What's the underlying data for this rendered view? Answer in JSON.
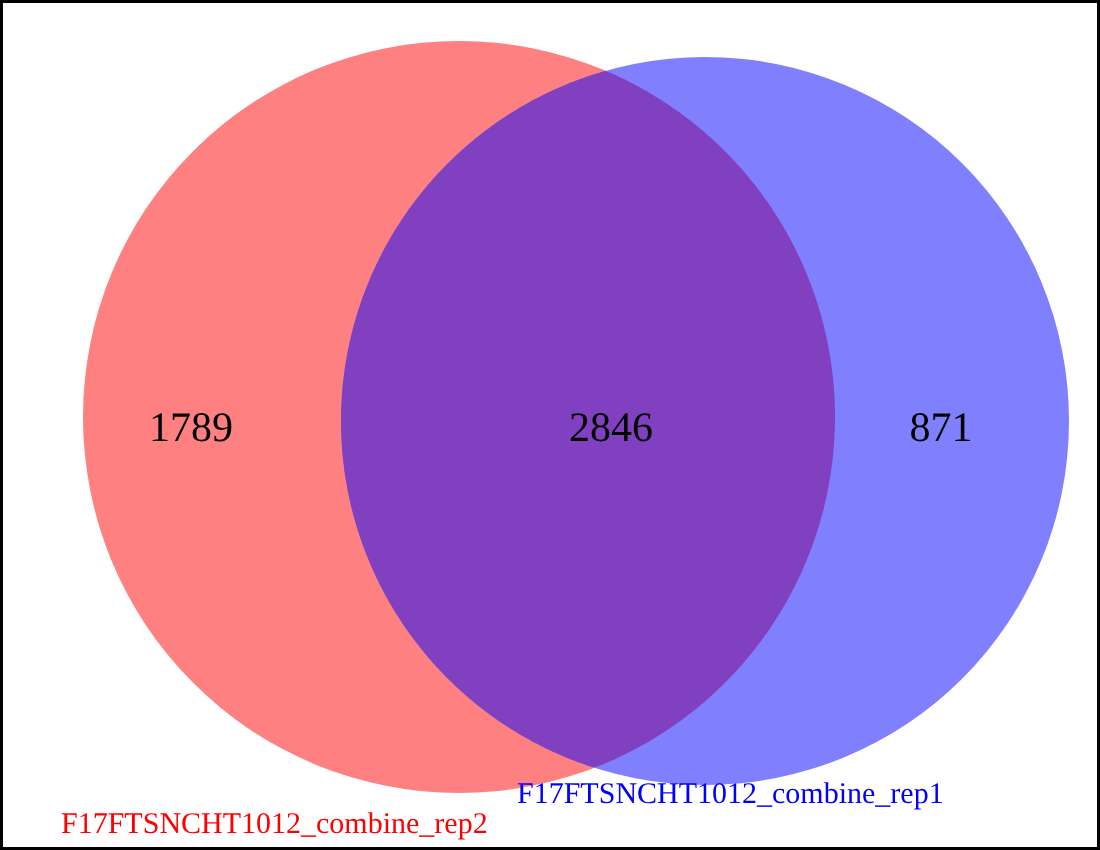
{
  "chart_data": {
    "type": "other",
    "categories": [
      null,
      null,
      null
    ],
    "values": [
      1789,
      2846,
      871
    ],
    "data_labels": true,
    "colors": [
      "#ff8080",
      "#8040bf",
      "#8080ff"
    ],
    "annotations": [
      "F17FTSNCHT1012_combine_rep2",
      "F17FTSNCHT1012_combine_rep1"
    ]
  }
}
